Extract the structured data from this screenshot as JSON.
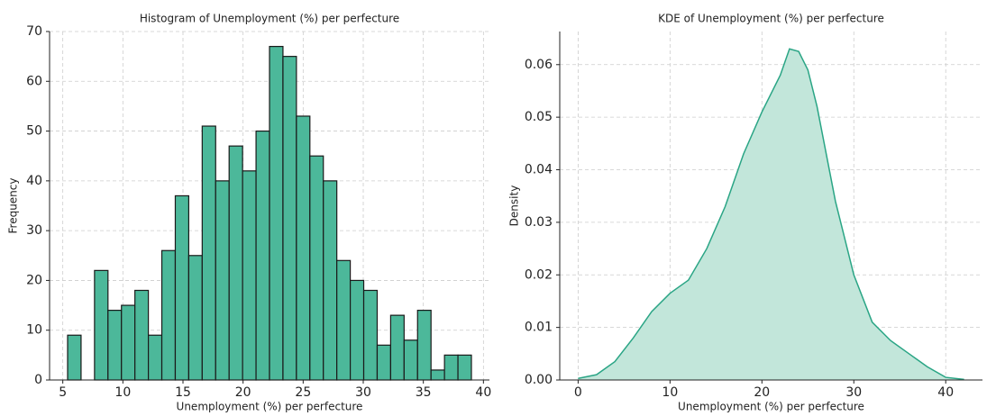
{
  "chart_data": [
    {
      "type": "histogram",
      "title": "Histogram of Unemployment (%) per perfecture",
      "x_label": "Unemployment (%) per perfecture",
      "y_label": "Frequency",
      "bins": [
        5.4,
        6.52,
        7.64,
        8.76,
        9.88,
        11.0,
        12.12,
        13.24,
        14.36,
        15.48,
        16.6,
        17.72,
        18.84,
        19.96,
        21.08,
        22.2,
        23.32,
        24.44,
        25.56,
        26.68,
        27.8,
        28.92,
        30.04,
        31.16,
        32.28,
        33.4,
        34.52,
        35.64,
        36.76,
        37.88,
        39.0
      ],
      "values": [
        9,
        0,
        22,
        14,
        15,
        18,
        9,
        26,
        37,
        25,
        51,
        40,
        47,
        42,
        50,
        67,
        65,
        53,
        45,
        40,
        24,
        20,
        18,
        7,
        13,
        8,
        14,
        2,
        5,
        5
      ],
      "color": "#4cb89a",
      "edgecolor": "#1a1a1a",
      "xlim": [
        3.9,
        40.5
      ],
      "xticks": [
        5,
        10,
        15,
        20,
        25,
        30,
        35,
        40
      ],
      "ylim": [
        0,
        70
      ],
      "yticks": [
        0,
        10,
        20,
        30,
        40,
        50,
        60,
        70
      ],
      "grid": true
    },
    {
      "type": "area",
      "title": "KDE of Unemployment (%) per perfecture",
      "x_label": "Unemployment (%) per perfecture",
      "y_label": "Density",
      "x": [
        0,
        2,
        4,
        6,
        8,
        10,
        12,
        14,
        16,
        18,
        20,
        22,
        23,
        24,
        25,
        26,
        28,
        30,
        32,
        34,
        36,
        38,
        40,
        42
      ],
      "values": [
        0.0003,
        0.001,
        0.0035,
        0.008,
        0.013,
        0.0165,
        0.019,
        0.025,
        0.033,
        0.043,
        0.051,
        0.058,
        0.063,
        0.0625,
        0.059,
        0.052,
        0.034,
        0.02,
        0.011,
        0.0075,
        0.005,
        0.0025,
        0.0005,
        0.0001
      ],
      "color": "#2aa585",
      "fill_color": "#c2e6da",
      "xlim": [
        -2,
        44
      ],
      "xticks": [
        0,
        10,
        20,
        30,
        40
      ],
      "ylim": [
        0,
        0.0663
      ],
      "yticks": [
        {
          "value": 0,
          "label": "0.00"
        },
        {
          "value": 0.01,
          "label": "0.01"
        },
        {
          "value": 0.02,
          "label": "0.02"
        },
        {
          "value": 0.03,
          "label": "0.03"
        },
        {
          "value": 0.04,
          "label": "0.04"
        },
        {
          "value": 0.05,
          "label": "0.05"
        },
        {
          "value": 0.06,
          "label": "0.06"
        }
      ],
      "grid": true
    }
  ]
}
